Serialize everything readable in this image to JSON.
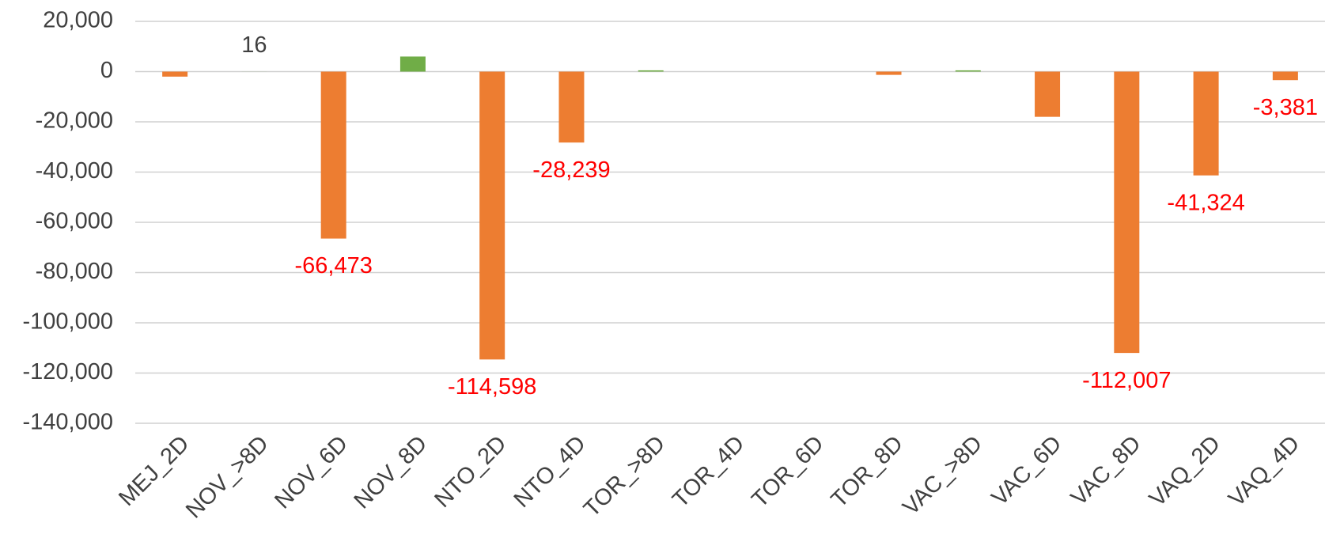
{
  "chart_data": {
    "type": "bar",
    "categories": [
      "MEJ_2D",
      "NOV_>8D",
      "NOV_6D",
      "NOV_8D",
      "NTO_2D",
      "NTO_4D",
      "TOR_>8D",
      "TOR_4D",
      "TOR_6D",
      "TOR_8D",
      "VAC_>8D",
      "VAC_6D",
      "VAC_8D",
      "VAQ_2D",
      "VAQ_4D"
    ],
    "values": [
      -2000,
      16,
      -66473,
      6000,
      -114598,
      -28239,
      500,
      0,
      0,
      -1300,
      500,
      -18000,
      -112007,
      -41324,
      -3381
    ],
    "value_labels": [
      null,
      "16",
      "-66,473",
      null,
      "-114,598",
      "-28,239",
      null,
      null,
      null,
      null,
      null,
      null,
      "-112,007",
      "-41,324",
      "-3,381"
    ],
    "positive_color": "#70ad47",
    "negative_color": "#ed7d31",
    "positive_label_color": "#404040",
    "negative_label_color": "#ff0000",
    "ylim": [
      -140000,
      20000
    ],
    "yticks": [
      {
        "value": -140000,
        "label": "-140,000"
      },
      {
        "value": -120000,
        "label": "-120,000"
      },
      {
        "value": -100000,
        "label": "-100,000"
      },
      {
        "value": -80000,
        "label": "-80,000"
      },
      {
        "value": -60000,
        "label": "-60,000"
      },
      {
        "value": -40000,
        "label": "-40,000"
      },
      {
        "value": -20000,
        "label": "-20,000"
      },
      0,
      {
        "value": 20000,
        "label": "20,000"
      }
    ],
    "grid": true
  }
}
